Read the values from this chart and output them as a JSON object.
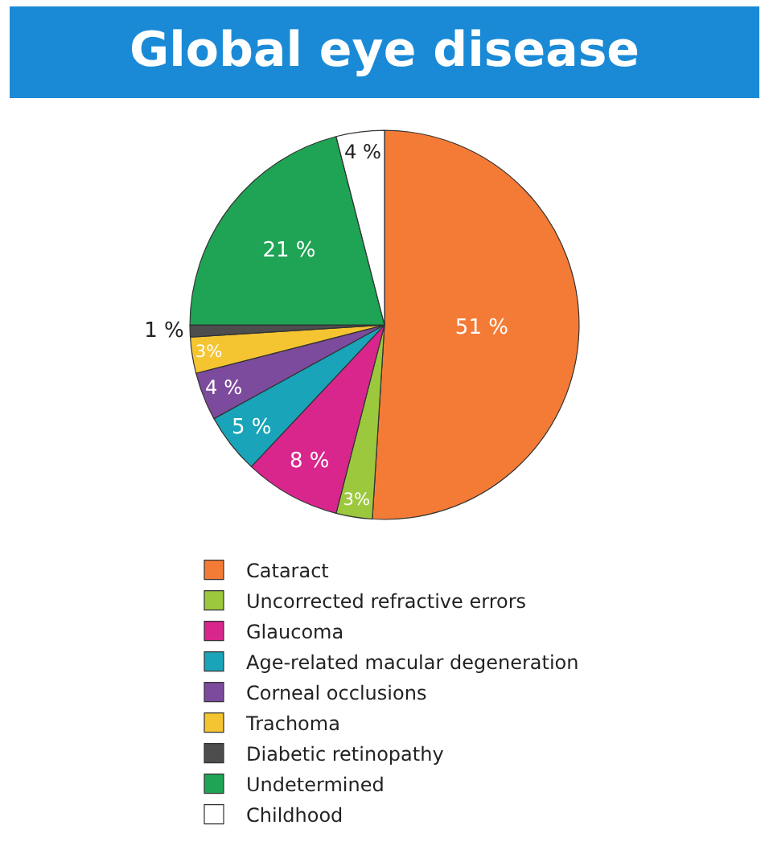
{
  "chart_data": {
    "type": "pie",
    "title": "Global eye disease",
    "categories": [
      "Cataract",
      "Uncorrected refractive errors",
      "Glaucoma",
      "Age-related macular degeneration",
      "Corneal occlusions",
      "Trachoma",
      "Diabetic retinopathy",
      "Undetermined",
      "Childhood"
    ],
    "values": [
      51,
      3,
      8,
      5,
      4,
      3,
      1,
      21,
      4
    ],
    "value_labels": [
      "51 %",
      "3%",
      "8 %",
      "5 %",
      "4 %",
      "3%",
      "1 %",
      "21 %",
      "4 %"
    ],
    "colors": [
      "#f47b36",
      "#9cc83e",
      "#d8268d",
      "#19a4b9",
      "#7d4b9d",
      "#f5c431",
      "#4d4d4d",
      "#1fa354",
      "#ffffff"
    ],
    "legend": "bottom"
  }
}
